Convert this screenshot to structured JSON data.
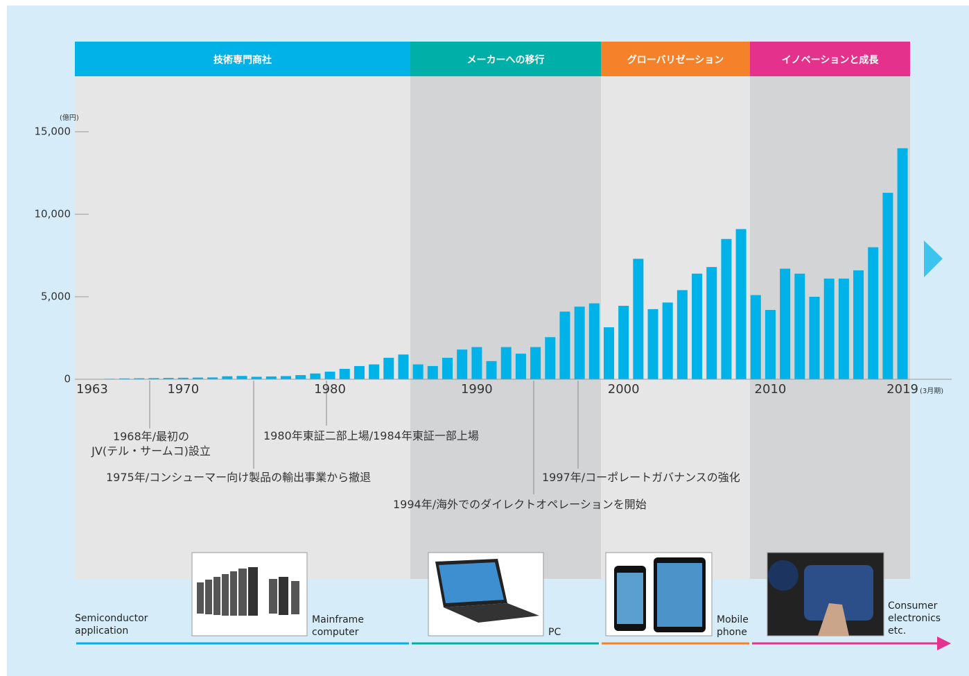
{
  "chart_data": {
    "type": "bar",
    "y_unit": "(億円)",
    "x_suffix": "(3月期)",
    "categories": [
      "1963",
      null,
      null,
      null,
      null,
      null,
      null,
      "1970",
      null,
      null,
      null,
      null,
      null,
      null,
      null,
      null,
      null,
      "1980",
      null,
      null,
      null,
      null,
      null,
      null,
      null,
      null,
      null,
      "1990",
      null,
      null,
      null,
      null,
      null,
      null,
      null,
      null,
      null,
      "2000",
      null,
      null,
      null,
      null,
      null,
      null,
      null,
      null,
      null,
      "2010",
      null,
      null,
      null,
      null,
      null,
      null,
      null,
      null,
      "2019"
    ],
    "values": [
      10,
      20,
      30,
      50,
      60,
      70,
      80,
      90,
      100,
      110,
      180,
      200,
      150,
      170,
      190,
      250,
      350,
      460,
      630,
      800,
      900,
      1300,
      1500,
      900,
      800,
      1300,
      1800,
      1950,
      1100,
      1950,
      1550,
      1950,
      2550,
      4100,
      4400,
      4600,
      3150,
      4450,
      7300,
      4250,
      4650,
      5400,
      6400,
      6800,
      8500,
      9100,
      5100,
      4200,
      6700,
      6400,
      5000,
      6100,
      6100,
      6600,
      8000,
      11300,
      14000
    ],
    "color": "#00b2e8",
    "ylim": [
      0,
      15000
    ],
    "yticks": [
      0,
      {
        "value": 5000,
        "label": "5,000"
      },
      {
        "value": 10000,
        "label": "10,000"
      },
      {
        "value": 15000,
        "label": "15,000"
      }
    ],
    "phases": [
      {
        "name": "技術専門商社",
        "color": "#00b2e8"
      },
      {
        "name": "メーカーへの移行",
        "color": "#00b0a8"
      },
      {
        "name": "グローバリゼーション",
        "color": "#f5822a"
      },
      {
        "name": "イノベーションと成長",
        "color": "#e4318c"
      }
    ],
    "annotations": [
      "1968年/最初の\nJV(テル・サームコ)設立",
      "1975年/コンシューマー向け製品の輸出事業から撤退",
      "1980年東証二部上場/1984年東証一部上場",
      "1994年/海外でのダイレクトオペレーションを開始",
      "1997年/コーポレートガバナンスの強化"
    ],
    "applications": [
      "Semiconductor\napplication",
      "Mainframe\ncomputer",
      "PC",
      "Mobile\nphone",
      "Consumer\nelectronics\netc."
    ]
  }
}
